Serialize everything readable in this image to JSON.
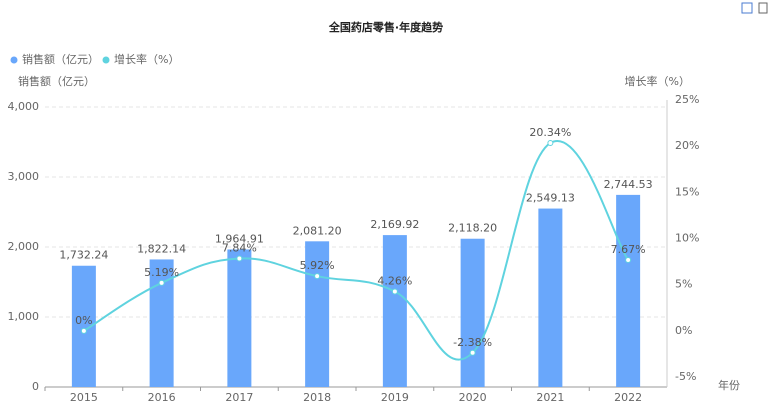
{
  "chart_data": {
    "type": "bar-line",
    "title": "全国药店零售·年度趋势",
    "y_label": "销售额（亿元）",
    "y2_label": "增长率（%）",
    "x_label": "年份",
    "categories": [
      "2015",
      "2016",
      "2017",
      "2018",
      "2019",
      "2020",
      "2021",
      "2022"
    ],
    "series": [
      {
        "name": "销售额（亿元）",
        "type": "bar",
        "color": "#69a7fb",
        "values": [
          1732.24,
          1822.14,
          1964.91,
          2081.2,
          2169.92,
          2118.2,
          2549.13,
          2744.53
        ],
        "value_labels": [
          "1,732.24",
          "1,822.14",
          "1,964.91",
          "2,081.20",
          "2,169.92",
          "2,118.20",
          "2,549.13",
          "2,744.53"
        ]
      },
      {
        "name": "增长率（%）",
        "type": "line",
        "axis": "y2",
        "color": "#5fd3df",
        "values": [
          0,
          5.19,
          7.84,
          5.92,
          4.26,
          -2.38,
          20.34,
          7.67
        ],
        "value_labels": [
          "0%",
          "5.19%",
          "7.84%",
          "5.92%",
          "4.26%",
          "-2.38%",
          "20.34%",
          "7.67%"
        ]
      }
    ],
    "ylim": [
      0,
      4000
    ],
    "yticks": [
      0,
      {
        "value": 1000,
        "label": "1,000"
      },
      {
        "value": 2000,
        "label": "2,000"
      },
      {
        "value": 3000,
        "label": "3,000"
      },
      {
        "value": 4000,
        "label": "4,000"
      }
    ],
    "y2lim": [
      -5,
      25
    ],
    "y2ticks": [
      {
        "value": -5,
        "label": "-5%"
      },
      {
        "value": 0,
        "label": "0%"
      },
      {
        "value": 5,
        "label": "5%"
      },
      {
        "value": 10,
        "label": "10%"
      },
      {
        "value": 15,
        "label": "15%"
      },
      {
        "value": 20,
        "label": "20%"
      },
      {
        "value": 25,
        "label": "25%"
      }
    ],
    "grid": true,
    "legend": "top-left"
  }
}
